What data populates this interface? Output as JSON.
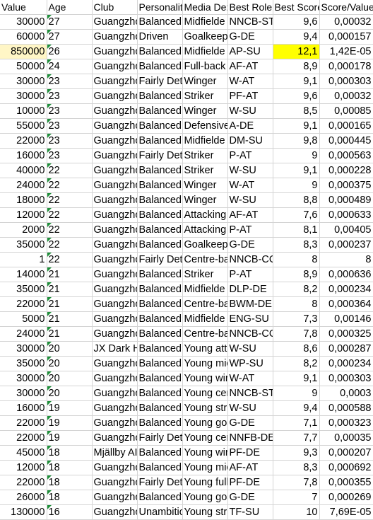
{
  "columns": [
    "Value",
    "Age",
    "Club",
    "Personalit",
    "Media De:",
    "Best Role",
    "Best Score",
    "Score/Value"
  ],
  "colors": {
    "highlight": "#ffff00",
    "selected_row_tint": "#fff6c6",
    "flag": "#1e8f3a",
    "gridline": "#d4d4d4"
  },
  "rows": [
    {
      "value": "30000",
      "age": "27",
      "club": "Guangzho",
      "pers": "Balanced",
      "media": "Midfielde",
      "role": "NNCB-ST",
      "score": "9,6",
      "sv": "0,00032"
    },
    {
      "value": "60000",
      "age": "27",
      "club": "Guangzho",
      "pers": "Driven",
      "media": "Goalkeep",
      "role": "G-DE",
      "score": "9,4",
      "sv": "0,000157"
    },
    {
      "value": "850000",
      "age": "26",
      "club": "Guangzho",
      "pers": "Balanced",
      "media": "Midfielde",
      "role": "AP-SU",
      "score": "12,1",
      "sv": "1,42E-05"
    },
    {
      "value": "50000",
      "age": "24",
      "club": "Guangzho",
      "pers": "Balanced",
      "media": "Full-back",
      "role": "AF-AT",
      "score": "8,9",
      "sv": "0,000178"
    },
    {
      "value": "30000",
      "age": "23",
      "club": "Guangzho",
      "pers": "Fairly Det",
      "media": "Winger",
      "role": "W-AT",
      "score": "9,1",
      "sv": "0,000303"
    },
    {
      "value": "30000",
      "age": "23",
      "club": "Guangzho",
      "pers": "Balanced",
      "media": "Striker",
      "role": "PF-AT",
      "score": "9,6",
      "sv": "0,00032"
    },
    {
      "value": "10000",
      "age": "23",
      "club": "Guangzho",
      "pers": "Balanced",
      "media": "Winger",
      "role": "W-SU",
      "score": "8,5",
      "sv": "0,00085"
    },
    {
      "value": "55000",
      "age": "23",
      "club": "Guangzho",
      "pers": "Balanced",
      "media": "Defensive",
      "role": "A-DE",
      "score": "9,1",
      "sv": "0,000165"
    },
    {
      "value": "22000",
      "age": "23",
      "club": "Guangzho",
      "pers": "Balanced",
      "media": "Midfielde",
      "role": "DM-SU",
      "score": "9,8",
      "sv": "0,000445"
    },
    {
      "value": "16000",
      "age": "23",
      "club": "Guangzho",
      "pers": "Fairly Det",
      "media": "Striker",
      "role": "P-AT",
      "score": "9",
      "sv": "0,000563"
    },
    {
      "value": "40000",
      "age": "22",
      "club": "Guangzho",
      "pers": "Balanced",
      "media": "Striker",
      "role": "W-SU",
      "score": "9,1",
      "sv": "0,000228"
    },
    {
      "value": "24000",
      "age": "22",
      "club": "Guangzho",
      "pers": "Balanced",
      "media": "Winger",
      "role": "W-AT",
      "score": "9",
      "sv": "0,000375"
    },
    {
      "value": "18000",
      "age": "22",
      "club": "Guangzho",
      "pers": "Balanced",
      "media": "Winger",
      "role": "W-SU",
      "score": "8,8",
      "sv": "0,000489"
    },
    {
      "value": "12000",
      "age": "22",
      "club": "Guangzho",
      "pers": "Balanced",
      "media": "Attacking",
      "role": "AF-AT",
      "score": "7,6",
      "sv": "0,000633"
    },
    {
      "value": "2000",
      "age": "22",
      "club": "Guangzho",
      "pers": "Balanced",
      "media": "Attacking",
      "role": "P-AT",
      "score": "8,1",
      "sv": "0,00405"
    },
    {
      "value": "35000",
      "age": "22",
      "club": "Guangzho",
      "pers": "Balanced",
      "media": "Goalkeep",
      "role": "G-DE",
      "score": "8,3",
      "sv": "0,000237"
    },
    {
      "value": "1",
      "age": "22",
      "club": "Guangzho",
      "pers": "Fairly Det",
      "media": "Centre-ba",
      "role": "NNCB-CO",
      "score": "8",
      "sv": "8"
    },
    {
      "value": "14000",
      "age": "21",
      "club": "Guangzho",
      "pers": "Balanced",
      "media": "Striker",
      "role": "P-AT",
      "score": "8,9",
      "sv": "0,000636"
    },
    {
      "value": "35000",
      "age": "21",
      "club": "Guangzho",
      "pers": "Balanced",
      "media": "Midfielde",
      "role": "DLP-DE",
      "score": "8,2",
      "sv": "0,000234"
    },
    {
      "value": "22000",
      "age": "21",
      "club": "Guangzho",
      "pers": "Balanced",
      "media": "Centre-ba",
      "role": "BWM-DE",
      "score": "8",
      "sv": "0,000364"
    },
    {
      "value": "5000",
      "age": "21",
      "club": "Guangzho",
      "pers": "Balanced",
      "media": "Midfielde",
      "role": "ENG-SU",
      "score": "7,3",
      "sv": "0,00146"
    },
    {
      "value": "24000",
      "age": "21",
      "club": "Guangzho",
      "pers": "Balanced",
      "media": "Centre-ba",
      "role": "NNCB-CO",
      "score": "7,8",
      "sv": "0,000325"
    },
    {
      "value": "30000",
      "age": "20",
      "club": "JX Dark H",
      "pers": "Balanced",
      "media": "Young atta",
      "role": "W-SU",
      "score": "8,6",
      "sv": "0,000287"
    },
    {
      "value": "35000",
      "age": "20",
      "club": "Guangzho",
      "pers": "Balanced",
      "media": "Young mic",
      "role": "WP-SU",
      "score": "8,2",
      "sv": "0,000234"
    },
    {
      "value": "30000",
      "age": "20",
      "club": "Guangzho",
      "pers": "Balanced",
      "media": "Young wir",
      "role": "W-AT",
      "score": "9,1",
      "sv": "0,000303"
    },
    {
      "value": "30000",
      "age": "20",
      "club": "Guangzho",
      "pers": "Balanced",
      "media": "Young cen",
      "role": "NNCB-ST",
      "score": "9",
      "sv": "0,0003"
    },
    {
      "value": "16000",
      "age": "19",
      "club": "Guangzho",
      "pers": "Balanced",
      "media": "Young stri",
      "role": "W-SU",
      "score": "9,4",
      "sv": "0,000588"
    },
    {
      "value": "22000",
      "age": "19",
      "club": "Guangzho",
      "pers": "Balanced",
      "media": "Young goa",
      "role": "G-DE",
      "score": "7,1",
      "sv": "0,000323"
    },
    {
      "value": "22000",
      "age": "19",
      "club": "Guangzho",
      "pers": "Fairly Det",
      "media": "Young cen",
      "role": "NNFB-DE",
      "score": "7,7",
      "sv": "0,00035"
    },
    {
      "value": "45000",
      "age": "18",
      "club": "Mjällby AI",
      "pers": "Balanced",
      "media": "Young wir",
      "role": "PF-DE",
      "score": "9,3",
      "sv": "0,000207"
    },
    {
      "value": "12000",
      "age": "18",
      "club": "Guangzho",
      "pers": "Balanced",
      "media": "Young mic",
      "role": "AF-AT",
      "score": "8,3",
      "sv": "0,000692"
    },
    {
      "value": "22000",
      "age": "18",
      "club": "Guangzho",
      "pers": "Fairly Det",
      "media": "Young full",
      "role": "PF-DE",
      "score": "7,8",
      "sv": "0,000355"
    },
    {
      "value": "26000",
      "age": "18",
      "club": "Guangzho",
      "pers": "Balanced",
      "media": "Young goa",
      "role": "G-DE",
      "score": "7",
      "sv": "0,000269"
    },
    {
      "value": "130000",
      "age": "16",
      "club": "Guangzho",
      "pers": "Unambitic",
      "media": "Young stri",
      "role": "TF-SU",
      "score": "10",
      "sv": "7,69E-05"
    }
  ]
}
